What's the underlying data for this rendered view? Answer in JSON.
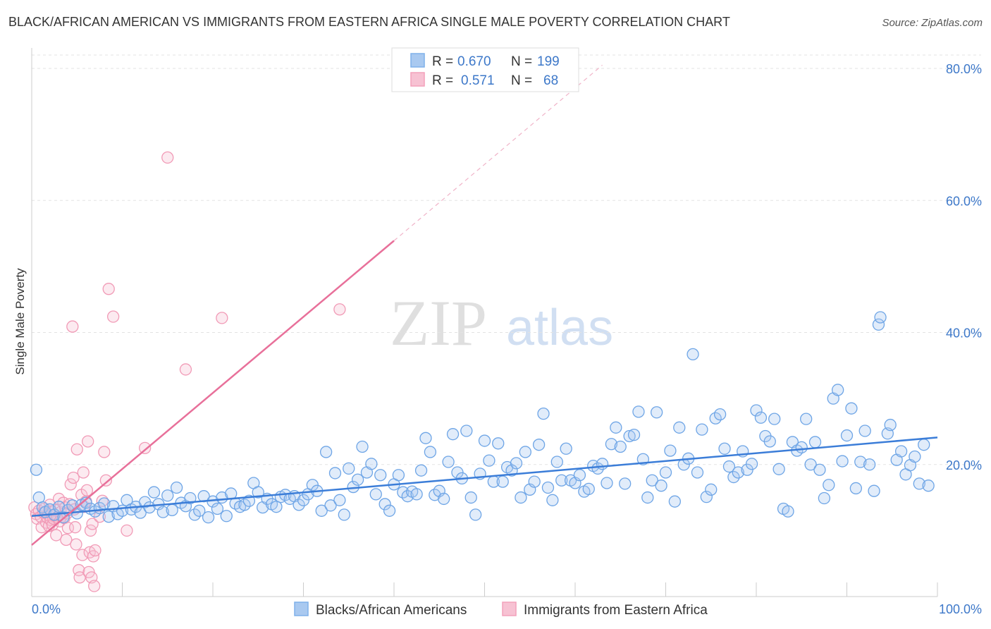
{
  "title": "BLACK/AFRICAN AMERICAN VS IMMIGRANTS FROM EASTERN AFRICA SINGLE MALE POVERTY CORRELATION CHART",
  "source": "Source: ZipAtlas.com",
  "watermark": {
    "zip": "ZIP",
    "atlas": "atlas"
  },
  "legend": {
    "r_label": "R =",
    "n_label": "N =",
    "series": [
      {
        "r": "0.670",
        "n": "199",
        "color": "#7fb1ea"
      },
      {
        "r": "0.571",
        "n": "68",
        "color": "#f3a1bb"
      }
    ]
  },
  "bottom_legend": [
    "Blacks/African Americans",
    "Immigrants from Eastern Africa"
  ],
  "colors": {
    "blue": "#3b7dd8",
    "pink": "#e8709a",
    "blue_fill": "#a9c9f0",
    "pink_fill": "#f7c2d3",
    "tick": "#3d78c9"
  },
  "chart_data": {
    "type": "scatter",
    "title": "BLACK/AFRICAN AMERICAN VS IMMIGRANTS FROM EASTERN AFRICA SINGLE MALE POVERTY CORRELATION CHART",
    "xlabel": "",
    "ylabel": "Single Male Poverty",
    "xlim": [
      0,
      100
    ],
    "ylim": [
      0,
      80
    ],
    "x_tick_labels": [
      "0.0%",
      "100.0%"
    ],
    "y_ticks": [
      20,
      40,
      60,
      80
    ],
    "y_tick_labels": [
      "20.0%",
      "40.0%",
      "60.0%",
      "80.0%"
    ],
    "grid": true,
    "legend_position": "top-center",
    "series": [
      {
        "name": "Blacks/African Americans",
        "r": 0.67,
        "n": 199,
        "trend": {
          "x": [
            0,
            100
          ],
          "y": [
            12.2,
            24.1
          ]
        },
        "points": [
          [
            0.5,
            19.2
          ],
          [
            0.8,
            15.0
          ],
          [
            1.2,
            13.5
          ],
          [
            1.5,
            12.8
          ],
          [
            2.0,
            13.2
          ],
          [
            2.5,
            12.4
          ],
          [
            3.0,
            13.6
          ],
          [
            3.5,
            12.0
          ],
          [
            4.0,
            13.1
          ],
          [
            4.5,
            13.8
          ],
          [
            5.0,
            12.6
          ],
          [
            5.5,
            13.9
          ],
          [
            6.0,
            14.2
          ],
          [
            6.5,
            13.3
          ],
          [
            7.0,
            12.9
          ],
          [
            7.5,
            13.4
          ],
          [
            8.0,
            14.1
          ],
          [
            8.5,
            12.1
          ],
          [
            9.0,
            13.7
          ],
          [
            9.5,
            12.5
          ],
          [
            10.0,
            13.0
          ],
          [
            10.5,
            14.6
          ],
          [
            11.0,
            13.2
          ],
          [
            11.5,
            13.6
          ],
          [
            12.0,
            12.7
          ],
          [
            12.5,
            14.3
          ],
          [
            13.0,
            13.5
          ],
          [
            13.5,
            15.8
          ],
          [
            14.0,
            14.0
          ],
          [
            14.5,
            12.8
          ],
          [
            15.0,
            15.3
          ],
          [
            15.5,
            13.1
          ],
          [
            16.0,
            16.5
          ],
          [
            16.5,
            14.2
          ],
          [
            17.0,
            13.7
          ],
          [
            17.5,
            14.9
          ],
          [
            18.0,
            12.4
          ],
          [
            18.5,
            13.0
          ],
          [
            19.0,
            15.2
          ],
          [
            19.5,
            12.0
          ],
          [
            20.0,
            14.4
          ],
          [
            20.5,
            13.3
          ],
          [
            21.0,
            15.0
          ],
          [
            21.5,
            12.2
          ],
          [
            22.0,
            15.6
          ],
          [
            22.5,
            14.1
          ],
          [
            23.0,
            13.6
          ],
          [
            23.5,
            13.9
          ],
          [
            24.0,
            14.5
          ],
          [
            24.5,
            17.2
          ],
          [
            25.0,
            15.8
          ],
          [
            25.5,
            13.5
          ],
          [
            26.0,
            14.8
          ],
          [
            26.5,
            14.0
          ],
          [
            27.0,
            13.6
          ],
          [
            27.5,
            15.1
          ],
          [
            28.0,
            15.4
          ],
          [
            28.5,
            14.8
          ],
          [
            29.0,
            15.2
          ],
          [
            29.5,
            13.9
          ],
          [
            30.0,
            14.6
          ],
          [
            30.5,
            15.5
          ],
          [
            31.0,
            16.9
          ],
          [
            31.5,
            16.0
          ],
          [
            32.0,
            13.0
          ],
          [
            32.5,
            21.9
          ],
          [
            33.0,
            13.8
          ],
          [
            33.5,
            18.7
          ],
          [
            34.0,
            14.6
          ],
          [
            34.5,
            12.4
          ],
          [
            35.0,
            19.4
          ],
          [
            35.5,
            16.6
          ],
          [
            36.0,
            17.7
          ],
          [
            36.5,
            22.7
          ],
          [
            37.0,
            18.8
          ],
          [
            37.5,
            20.1
          ],
          [
            38.0,
            15.5
          ],
          [
            38.5,
            18.4
          ],
          [
            39.0,
            14.0
          ],
          [
            39.5,
            13.0
          ],
          [
            40.0,
            17.0
          ],
          [
            40.5,
            18.4
          ],
          [
            41.0,
            15.8
          ],
          [
            41.5,
            15.2
          ],
          [
            42.0,
            15.9
          ],
          [
            42.5,
            15.5
          ],
          [
            43.0,
            19.1
          ],
          [
            43.5,
            24.0
          ],
          [
            44.0,
            21.9
          ],
          [
            44.5,
            15.4
          ],
          [
            45.0,
            16.0
          ],
          [
            45.5,
            14.8
          ],
          [
            46.0,
            20.4
          ],
          [
            46.5,
            24.6
          ],
          [
            47.0,
            18.8
          ],
          [
            47.5,
            17.9
          ],
          [
            48.0,
            25.1
          ],
          [
            48.5,
            15.0
          ],
          [
            49.0,
            12.4
          ],
          [
            49.5,
            18.6
          ],
          [
            50.0,
            23.6
          ],
          [
            50.5,
            20.6
          ],
          [
            51.0,
            17.4
          ],
          [
            51.5,
            23.2
          ],
          [
            52.0,
            17.4
          ],
          [
            52.5,
            19.6
          ],
          [
            53.0,
            19.1
          ],
          [
            53.5,
            20.2
          ],
          [
            54.0,
            15.0
          ],
          [
            54.5,
            21.9
          ],
          [
            55.0,
            16.2
          ],
          [
            55.5,
            17.4
          ],
          [
            56.0,
            23.0
          ],
          [
            56.5,
            27.7
          ],
          [
            57.0,
            16.5
          ],
          [
            57.5,
            14.6
          ],
          [
            58.0,
            20.4
          ],
          [
            58.5,
            17.6
          ],
          [
            59.0,
            22.4
          ],
          [
            59.5,
            17.6
          ],
          [
            60.0,
            17.2
          ],
          [
            60.5,
            18.4
          ],
          [
            61.0,
            15.9
          ],
          [
            61.5,
            16.3
          ],
          [
            62.0,
            19.8
          ],
          [
            62.5,
            19.4
          ],
          [
            63.0,
            20.1
          ],
          [
            63.5,
            17.2
          ],
          [
            64.0,
            23.1
          ],
          [
            64.5,
            25.6
          ],
          [
            65.0,
            22.7
          ],
          [
            65.5,
            17.1
          ],
          [
            66.0,
            24.3
          ],
          [
            66.5,
            24.5
          ],
          [
            67.0,
            28.0
          ],
          [
            67.5,
            20.8
          ],
          [
            68.0,
            15.0
          ],
          [
            68.5,
            17.6
          ],
          [
            69.0,
            27.9
          ],
          [
            69.5,
            16.8
          ],
          [
            70.0,
            18.8
          ],
          [
            70.5,
            22.1
          ],
          [
            71.0,
            14.4
          ],
          [
            71.5,
            25.6
          ],
          [
            72.0,
            20.0
          ],
          [
            72.5,
            20.9
          ],
          [
            73.0,
            36.7
          ],
          [
            73.5,
            18.8
          ],
          [
            74.0,
            25.3
          ],
          [
            74.5,
            15.1
          ],
          [
            75.0,
            16.2
          ],
          [
            75.5,
            27.0
          ],
          [
            76.0,
            27.6
          ],
          [
            76.5,
            22.4
          ],
          [
            77.0,
            19.7
          ],
          [
            77.5,
            18.1
          ],
          [
            78.0,
            18.8
          ],
          [
            78.5,
            22.0
          ],
          [
            79.0,
            19.2
          ],
          [
            79.5,
            20.1
          ],
          [
            80.0,
            28.2
          ],
          [
            80.5,
            27.1
          ],
          [
            81.0,
            24.3
          ],
          [
            81.5,
            23.5
          ],
          [
            82.0,
            26.9
          ],
          [
            82.5,
            19.3
          ],
          [
            83.0,
            13.3
          ],
          [
            83.5,
            12.9
          ],
          [
            84.0,
            23.4
          ],
          [
            84.5,
            22.1
          ],
          [
            85.0,
            22.6
          ],
          [
            85.5,
            26.9
          ],
          [
            86.0,
            20.0
          ],
          [
            86.5,
            23.4
          ],
          [
            87.0,
            19.2
          ],
          [
            87.5,
            14.9
          ],
          [
            88.0,
            16.9
          ],
          [
            88.5,
            30.0
          ],
          [
            89.0,
            31.3
          ],
          [
            89.5,
            20.5
          ],
          [
            90.0,
            24.4
          ],
          [
            90.5,
            28.5
          ],
          [
            91.0,
            16.4
          ],
          [
            91.5,
            20.4
          ],
          [
            92.0,
            25.1
          ],
          [
            92.5,
            20.0
          ],
          [
            93.0,
            16.0
          ],
          [
            93.5,
            41.2
          ],
          [
            93.7,
            42.3
          ],
          [
            94.5,
            24.7
          ],
          [
            94.8,
            26.0
          ],
          [
            95.5,
            20.7
          ],
          [
            96.0,
            22.0
          ],
          [
            96.5,
            18.5
          ],
          [
            97.0,
            19.9
          ],
          [
            97.5,
            21.2
          ],
          [
            98.0,
            17.1
          ],
          [
            98.5,
            23.0
          ],
          [
            99.0,
            16.8
          ]
        ]
      },
      {
        "name": "Immigrants from Eastern Africa",
        "r": 0.571,
        "n": 68,
        "trend": {
          "x": [
            0,
            40
          ],
          "y": [
            7.8,
            53.9
          ]
        },
        "trend_dashed": {
          "x": [
            40,
            63
          ],
          "y": [
            53.9,
            80.5
          ]
        },
        "points": [
          [
            0.3,
            13.5
          ],
          [
            0.5,
            12.5
          ],
          [
            0.6,
            11.8
          ],
          [
            0.8,
            13.0
          ],
          [
            1.0,
            12.1
          ],
          [
            1.1,
            10.5
          ],
          [
            1.3,
            12.7
          ],
          [
            1.4,
            13.3
          ],
          [
            1.6,
            11.2
          ],
          [
            1.7,
            12.0
          ],
          [
            1.8,
            12.4
          ],
          [
            1.9,
            10.7
          ],
          [
            2.0,
            13.9
          ],
          [
            2.1,
            11.6
          ],
          [
            2.2,
            12.9
          ],
          [
            2.3,
            10.9
          ],
          [
            2.4,
            11.8
          ],
          [
            2.5,
            12.3
          ],
          [
            2.6,
            13.1
          ],
          [
            2.7,
            9.3
          ],
          [
            2.8,
            12.0
          ],
          [
            3.0,
            14.8
          ],
          [
            3.1,
            11.4
          ],
          [
            3.2,
            12.8
          ],
          [
            3.3,
            12.1
          ],
          [
            3.5,
            14.2
          ],
          [
            3.6,
            11.9
          ],
          [
            3.7,
            13.5
          ],
          [
            3.8,
            8.6
          ],
          [
            3.9,
            12.6
          ],
          [
            4.0,
            10.4
          ],
          [
            4.2,
            14.0
          ],
          [
            4.3,
            17.0
          ],
          [
            4.5,
            40.9
          ],
          [
            4.6,
            18.0
          ],
          [
            4.7,
            13.2
          ],
          [
            4.8,
            10.5
          ],
          [
            4.9,
            7.9
          ],
          [
            5.0,
            22.3
          ],
          [
            5.2,
            4.0
          ],
          [
            5.3,
            2.9
          ],
          [
            5.5,
            15.4
          ],
          [
            5.6,
            6.3
          ],
          [
            5.7,
            18.8
          ],
          [
            5.8,
            13.6
          ],
          [
            6.0,
            14.4
          ],
          [
            6.1,
            16.1
          ],
          [
            6.2,
            23.5
          ],
          [
            6.3,
            3.7
          ],
          [
            6.4,
            6.7
          ],
          [
            6.5,
            10.0
          ],
          [
            6.6,
            2.9
          ],
          [
            6.7,
            11.0
          ],
          [
            6.8,
            6.1
          ],
          [
            6.9,
            1.6
          ],
          [
            7.0,
            7.0
          ],
          [
            7.5,
            12.1
          ],
          [
            7.8,
            14.5
          ],
          [
            8.0,
            21.9
          ],
          [
            8.2,
            17.6
          ],
          [
            8.5,
            46.6
          ],
          [
            9.0,
            42.4
          ],
          [
            10.5,
            10.0
          ],
          [
            12.5,
            22.5
          ],
          [
            15.0,
            66.5
          ],
          [
            17.0,
            34.4
          ],
          [
            21.0,
            42.2
          ],
          [
            34.0,
            43.5
          ]
        ]
      }
    ]
  }
}
